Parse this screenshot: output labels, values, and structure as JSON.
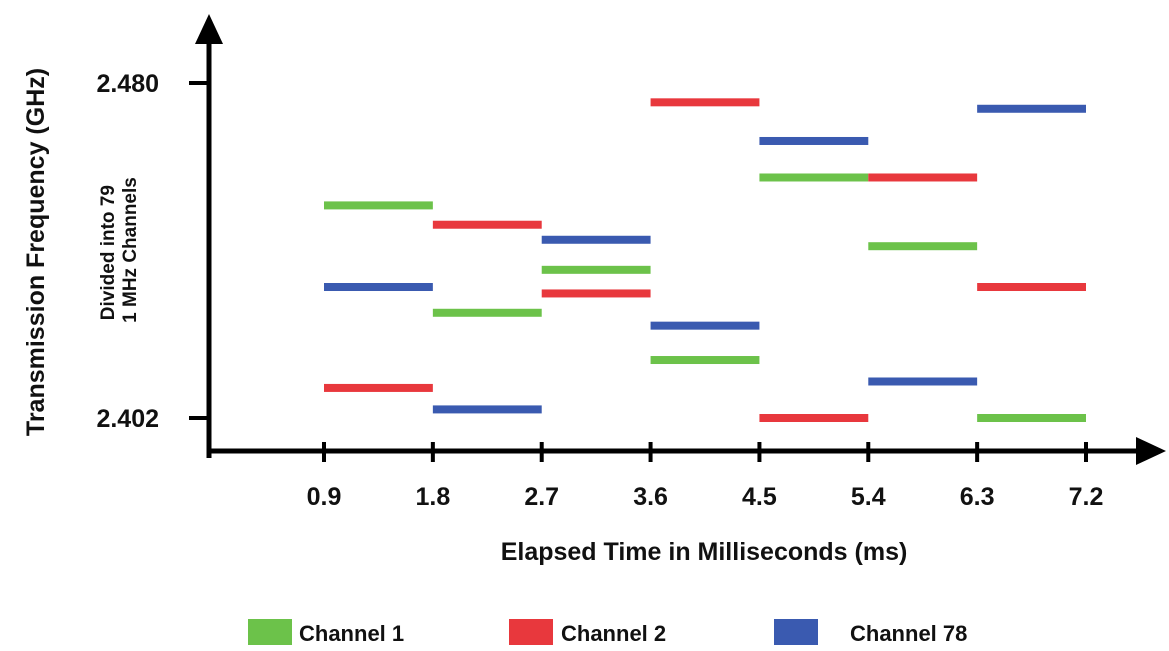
{
  "chart_data": {
    "type": "bar",
    "subtype": "frequency-hopping-timeline",
    "title": "",
    "xlabel": "Elapsed Time in Milliseconds (ms)",
    "ylabel": "Transmission Frequency (GHz)",
    "ylabel_secondary": [
      "Divided into 79",
      "1 MHz Channels"
    ],
    "x_ticks": [
      "0.9",
      "1.8",
      "2.7",
      "3.6",
      "4.5",
      "5.4",
      "6.3",
      "7.2"
    ],
    "y_ticks": [
      "2.480",
      "2.402"
    ],
    "ylim": [
      2.402,
      2.48
    ],
    "legend_position": "bottom",
    "series": [
      {
        "name": "Channel 1",
        "color": "#6cc24a",
        "segments": [
          {
            "x_start": 0.9,
            "x_end": 1.8,
            "y": 2.4515
          },
          {
            "x_start": 1.8,
            "x_end": 2.7,
            "y": 2.4265
          },
          {
            "x_start": 2.7,
            "x_end": 3.6,
            "y": 2.4365
          },
          {
            "x_start": 3.6,
            "x_end": 4.5,
            "y": 2.4155
          },
          {
            "x_start": 4.5,
            "x_end": 5.4,
            "y": 2.458
          },
          {
            "x_start": 5.4,
            "x_end": 6.3,
            "y": 2.442
          },
          {
            "x_start": 6.3,
            "x_end": 7.2,
            "y": 2.402
          }
        ]
      },
      {
        "name": "Channel 2",
        "color": "#e8383d",
        "segments": [
          {
            "x_start": 0.9,
            "x_end": 1.8,
            "y": 2.409
          },
          {
            "x_start": 1.8,
            "x_end": 2.7,
            "y": 2.447
          },
          {
            "x_start": 2.7,
            "x_end": 3.6,
            "y": 2.431
          },
          {
            "x_start": 3.6,
            "x_end": 4.5,
            "y": 2.4755
          },
          {
            "x_start": 4.5,
            "x_end": 5.4,
            "y": 2.402
          },
          {
            "x_start": 5.4,
            "x_end": 6.3,
            "y": 2.458
          },
          {
            "x_start": 6.3,
            "x_end": 7.2,
            "y": 2.4325
          }
        ]
      },
      {
        "name": "Channel 78",
        "color": "#3a5ab0",
        "segments": [
          {
            "x_start": 0.9,
            "x_end": 1.8,
            "y": 2.4325
          },
          {
            "x_start": 1.8,
            "x_end": 2.7,
            "y": 2.404
          },
          {
            "x_start": 2.7,
            "x_end": 3.6,
            "y": 2.4435
          },
          {
            "x_start": 3.6,
            "x_end": 4.5,
            "y": 2.4235
          },
          {
            "x_start": 4.5,
            "x_end": 5.4,
            "y": 2.4665
          },
          {
            "x_start": 5.4,
            "x_end": 6.3,
            "y": 2.4105
          },
          {
            "x_start": 6.3,
            "x_end": 7.2,
            "y": 2.474
          }
        ]
      }
    ]
  }
}
